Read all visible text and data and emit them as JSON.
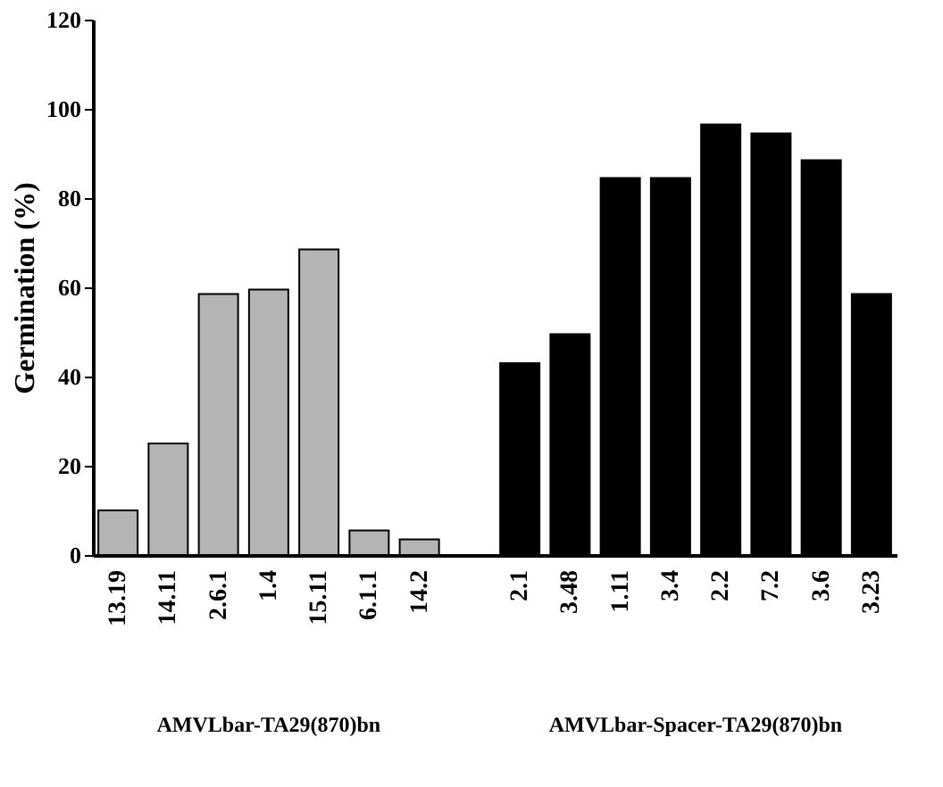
{
  "chart_data": {
    "type": "bar",
    "ylabel": "Germination (%)",
    "categories": [
      "13.19",
      "14.11",
      "2.6.1",
      "1.4",
      "15.11",
      "6.1.1",
      "14.2",
      null,
      "2.1",
      "3.48",
      "1.11",
      "3.4",
      "2.2",
      "7.2",
      "3.6",
      "3.23"
    ],
    "series": [
      {
        "color": "#b4b4b4",
        "values": [
          10,
          25,
          58.5,
          59.5,
          68.5,
          5.5,
          3.5,
          null,
          null,
          null,
          null,
          null,
          null,
          null,
          null,
          null
        ]
      },
      {
        "color": "#000000",
        "values": [
          null,
          null,
          null,
          null,
          null,
          null,
          null,
          null,
          43,
          49.5,
          84.5,
          84.5,
          96.5,
          94.5,
          88.5,
          58.5
        ]
      }
    ],
    "annotations": [
      "AMVLbar-TA29(870)bn",
      "AMVLbar-Spacer-TA29(870)bn"
    ],
    "ylim": [
      0,
      120
    ],
    "yticks": [
      0,
      20,
      40,
      60,
      80,
      100,
      120
    ],
    "grid": false
  }
}
